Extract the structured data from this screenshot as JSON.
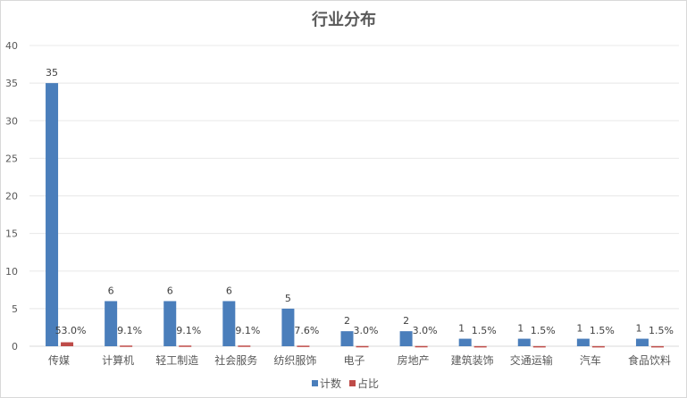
{
  "chart_data": {
    "type": "bar",
    "title": "行业分布",
    "categories": [
      "传媒",
      "计算机",
      "轻工制造",
      "社会服务",
      "纺织服饰",
      "电子",
      "房地产",
      "建筑装饰",
      "交通运输",
      "汽车",
      "食品饮料"
    ],
    "series": [
      {
        "name": "计数",
        "color": "#4a7ebb",
        "values": [
          35,
          6,
          6,
          6,
          5,
          2,
          2,
          1,
          1,
          1,
          1
        ],
        "labels": [
          "35",
          "6",
          "6",
          "6",
          "5",
          "2",
          "2",
          "1",
          "1",
          "1",
          "1"
        ]
      },
      {
        "name": "占比",
        "color": "#be4b48",
        "values": [
          0.53,
          0.091,
          0.091,
          0.091,
          0.076,
          0.03,
          0.03,
          0.015,
          0.015,
          0.015,
          0.015
        ],
        "labels": [
          "53.0%",
          "9.1%",
          "9.1%",
          "9.1%",
          "7.6%",
          "3.0%",
          "3.0%",
          "1.5%",
          "1.5%",
          "1.5%",
          "1.5%"
        ]
      }
    ],
    "ylim": [
      0,
      40
    ],
    "yticks": [
      "0",
      "5",
      "10",
      "15",
      "20",
      "25",
      "30",
      "35",
      "40"
    ],
    "grid": true,
    "legend": "bottom"
  }
}
